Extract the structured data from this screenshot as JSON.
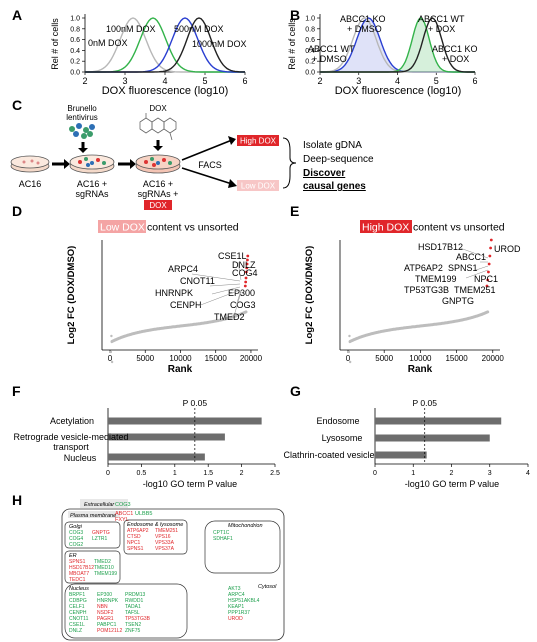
{
  "panels": {
    "A": {
      "letter": "A",
      "ylabel": "Rel # of cells",
      "xlabel": "DOX fluorescence (log10)",
      "xticks": [
        "2",
        "3",
        "4",
        "5",
        "6"
      ],
      "yticks": [
        "0.0",
        "0.2",
        "0.4",
        "0.6",
        "0.8",
        "1.0"
      ],
      "labels": [
        "0nM DOX",
        "100nM DOX",
        "500nM DOX",
        "1000nM DOX"
      ],
      "colors": [
        "#b8b8b8",
        "#33b34a",
        "#2a3fd1",
        "#222222"
      ]
    },
    "B": {
      "letter": "B",
      "ylabel": "Rel # of cells",
      "xlabel": "DOX fluorescence (log10)",
      "xticks": [
        "2",
        "3",
        "4",
        "5",
        "6"
      ],
      "yticks": [
        "0.0",
        "0.2",
        "0.4",
        "0.6",
        "0.8",
        "1.0"
      ],
      "labels": [
        [
          "ABCC1 KO",
          "+ DMSO"
        ],
        [
          "ABCC1 WT",
          "+ DMSO"
        ],
        [
          "ABCC1 WT",
          "+ DOX"
        ],
        [
          "ABCC1 KO",
          "+ DOX"
        ]
      ]
    },
    "C": {
      "letter": "C",
      "brunello": [
        "Brunello",
        "lentivirus"
      ],
      "dox": "DOX",
      "ac16": "AC16",
      "ac16_sg": [
        "AC16 +",
        "sgRNAs"
      ],
      "ac16_sg_dox": [
        "AC16 +",
        "sgRNAs +",
        "DOX"
      ],
      "facs": "FACS",
      "high": "High DOX",
      "low": "Low DOX",
      "steps": [
        "Isolate gDNA",
        "Deep-sequence",
        "Discover",
        "causal genes"
      ]
    },
    "D": {
      "letter": "D",
      "title_hl": "Low DOX",
      "title_rest": " content vs unsorted",
      "ylabel": "Log2 FC (DOX/DMSO)",
      "xlabel": "Rank",
      "xticks": [
        "0",
        "5000",
        "10000",
        "15000",
        "20000"
      ],
      "genes": [
        "CSE1L",
        "ARPC4",
        "DNLZ",
        "COG4",
        "CNOT11",
        "HNRNPK",
        "EP300",
        "CENPH",
        "COG3",
        "TMED2"
      ]
    },
    "E": {
      "letter": "E",
      "title_hl": "High DOX",
      "title_rest": " content vs unsorted",
      "ylabel": "Log2 FC (DOX/DMSO)",
      "xlabel": "Rank",
      "xticks": [
        "0",
        "5000",
        "10000",
        "15000",
        "20000"
      ],
      "genes": [
        "HSD17B12",
        "UROD",
        "ABCC1",
        "ATP6AP2",
        "SPNS1",
        "TMEM199",
        "NPC1",
        "TP53TG3B",
        "TMEM251",
        "GNPTG"
      ]
    },
    "F": {
      "letter": "F",
      "pval_label": "P 0.05",
      "xlabel": "-log10 GO term P value",
      "xticks": [
        "0",
        "0.5",
        "1",
        "1.5",
        "2",
        "2.5"
      ],
      "terms": [
        "Acetylation",
        [
          "Retrograde vesicle-mediated",
          "transport"
        ],
        "Nucleus"
      ]
    },
    "G": {
      "letter": "G",
      "pval_label": "P 0.05",
      "xlabel": "-log10 GO term P value",
      "xticks": [
        "0",
        "1",
        "2",
        "3",
        "4"
      ],
      "terms": [
        "Endosome",
        "Lysosome",
        "Clathrin-coated vesicle"
      ]
    },
    "H": {
      "letter": "H",
      "extracellular": "Extracellular",
      "extracellular_genes": [
        "COG3",
        "ABCC1",
        "ULBB5",
        "FXYL"
      ],
      "plasma": "Plasma membrane",
      "golgi": "Golgi",
      "golgi_genes": [
        [
          "COG3",
          "GNPTG"
        ],
        [
          "COG4",
          "LZTR1"
        ],
        [
          "COG2"
        ]
      ],
      "endo": "Endosome & lysosome",
      "endo_genes": [
        [
          "ATP6AP2",
          "TMEM251"
        ],
        [
          "CTSD",
          "VPS16"
        ],
        [
          "NPC1",
          "VPS33A"
        ],
        [
          "SPNS1",
          "VPS37A"
        ]
      ],
      "er": "ER",
      "er_genes": [
        [
          "SPNS1",
          "TMED2"
        ],
        [
          "HSD17B12",
          "TMED10"
        ],
        [
          "MBOAT7",
          "TMEM199"
        ],
        [
          "TEDC1"
        ]
      ],
      "mito": "Mitochondrion",
      "mito_genes": [
        "CPT1C",
        "SDHAF1"
      ],
      "nucleus": "Nucleus",
      "nucleus_genes": [
        [
          "BRPF1",
          "EP300",
          "PRDM13"
        ],
        [
          "CDBPG",
          "HNRNPK",
          "RWDD1"
        ],
        [
          "CELF1",
          "NBN",
          "TADA1"
        ],
        [
          "CENPH",
          "NSDF2",
          "TAF5L"
        ],
        [
          "CNOT11",
          "PAGR1",
          "TP53TG3B"
        ],
        [
          "CSE1L",
          "PABPC1",
          "TSEN2"
        ],
        [
          "DNLZ",
          "POM121L2",
          "ZNF75"
        ]
      ],
      "cytosol": "Cytosol",
      "cytosol_genes": [
        "AKT3",
        "ARPC4",
        "HSP51AKBL4",
        "KEAP1",
        "PPP1R37",
        "UROD"
      ]
    }
  },
  "chart_data": [
    {
      "type": "line",
      "title": "",
      "xlabel": "DOX fluorescence (log10)",
      "ylabel": "Rel # of cells",
      "xlim": [
        2,
        6
      ],
      "ylim": [
        0,
        1
      ],
      "series": [
        {
          "name": "0nM DOX",
          "peak": 3.2,
          "width": 0.32
        },
        {
          "name": "100nM DOX",
          "peak": 3.7,
          "width": 0.32
        },
        {
          "name": "500nM DOX",
          "peak": 4.5,
          "width": 0.32
        },
        {
          "name": "1000nM DOX",
          "peak": 4.85,
          "width": 0.3
        }
      ]
    },
    {
      "type": "line",
      "title": "",
      "xlabel": "DOX fluorescence (log10)",
      "ylabel": "Rel # of cells",
      "xlim": [
        2,
        6
      ],
      "ylim": [
        0,
        1
      ],
      "series": [
        {
          "name": "ABCC1 KO + DMSO",
          "peak": 3.25,
          "width": 0.3
        },
        {
          "name": "ABCC1 WT + DMSO",
          "peak": 3.15,
          "width": 0.3
        },
        {
          "name": "ABCC1 WT + DOX",
          "peak": 4.6,
          "width": 0.22
        },
        {
          "name": "ABCC1 KO + DOX",
          "peak": 4.9,
          "width": 0.24
        }
      ]
    },
    {
      "type": "scatter",
      "title": "Low DOX content vs unsorted",
      "xlabel": "Rank",
      "ylabel": "Log2 FC (DOX/DMSO)",
      "xlim": [
        0,
        21000
      ]
    },
    {
      "type": "scatter",
      "title": "High DOX content vs unsorted",
      "xlabel": "Rank",
      "ylabel": "Log2 FC (DOX/DMSO)",
      "xlim": [
        0,
        21000
      ]
    },
    {
      "type": "bar",
      "categories": [
        "Acetylation",
        "Retrograde vesicle-mediated transport",
        "Nucleus"
      ],
      "values": [
        2.3,
        1.75,
        1.45
      ],
      "xlabel": "-log10 GO term P value",
      "xlim": [
        0,
        2.5
      ],
      "threshold": 1.3
    },
    {
      "type": "bar",
      "categories": [
        "Endosome",
        "Lysosome",
        "Clathrin-coated vesicle"
      ],
      "values": [
        3.3,
        3.0,
        1.35
      ],
      "xlabel": "-log10 GO term P value",
      "xlim": [
        0,
        4
      ],
      "threshold": 1.3
    }
  ]
}
